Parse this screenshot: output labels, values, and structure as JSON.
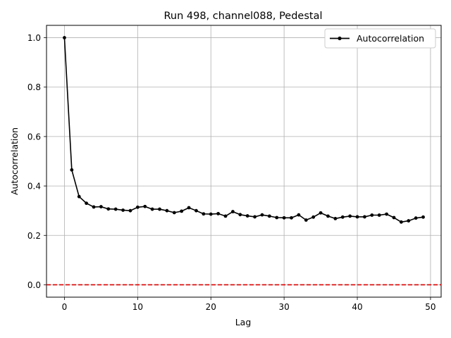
{
  "chart_data": {
    "type": "line",
    "title": "Run 498, channel088, Pedestal",
    "xlabel": "Lag",
    "ylabel": "Autocorrelation",
    "xlim": [
      -2.45,
      51.45
    ],
    "ylim": [
      -0.05,
      1.05
    ],
    "xticks": [
      0,
      10,
      20,
      30,
      40,
      50
    ],
    "yticks": [
      0.0,
      0.2,
      0.4,
      0.6,
      0.8,
      1.0
    ],
    "ytick_labels": [
      "0.0",
      "0.2",
      "0.4",
      "0.6",
      "0.8",
      "1.0"
    ],
    "grid": true,
    "legend_position": "top-right",
    "series": [
      {
        "name": "Autocorrelation",
        "color": "#000000",
        "marker": "circle",
        "x": [
          0,
          1,
          2,
          3,
          4,
          5,
          6,
          7,
          8,
          9,
          10,
          11,
          12,
          13,
          14,
          15,
          16,
          17,
          18,
          19,
          20,
          21,
          22,
          23,
          24,
          25,
          26,
          27,
          28,
          29,
          30,
          31,
          32,
          33,
          34,
          35,
          36,
          37,
          38,
          39,
          40,
          41,
          42,
          43,
          44,
          45,
          46,
          47,
          48,
          49
        ],
        "values": [
          1.0,
          0.465,
          0.357,
          0.33,
          0.315,
          0.316,
          0.307,
          0.306,
          0.302,
          0.3,
          0.314,
          0.317,
          0.306,
          0.306,
          0.3,
          0.292,
          0.298,
          0.312,
          0.3,
          0.287,
          0.286,
          0.288,
          0.278,
          0.296,
          0.284,
          0.279,
          0.275,
          0.283,
          0.278,
          0.272,
          0.271,
          0.271,
          0.283,
          0.262,
          0.274,
          0.291,
          0.278,
          0.268,
          0.274,
          0.278,
          0.275,
          0.275,
          0.282,
          0.282,
          0.286,
          0.272,
          0.254,
          0.259,
          0.27,
          0.274
        ]
      }
    ],
    "reference_line": {
      "y": 0.0,
      "color": "#dd0000",
      "style": "dashed"
    }
  }
}
